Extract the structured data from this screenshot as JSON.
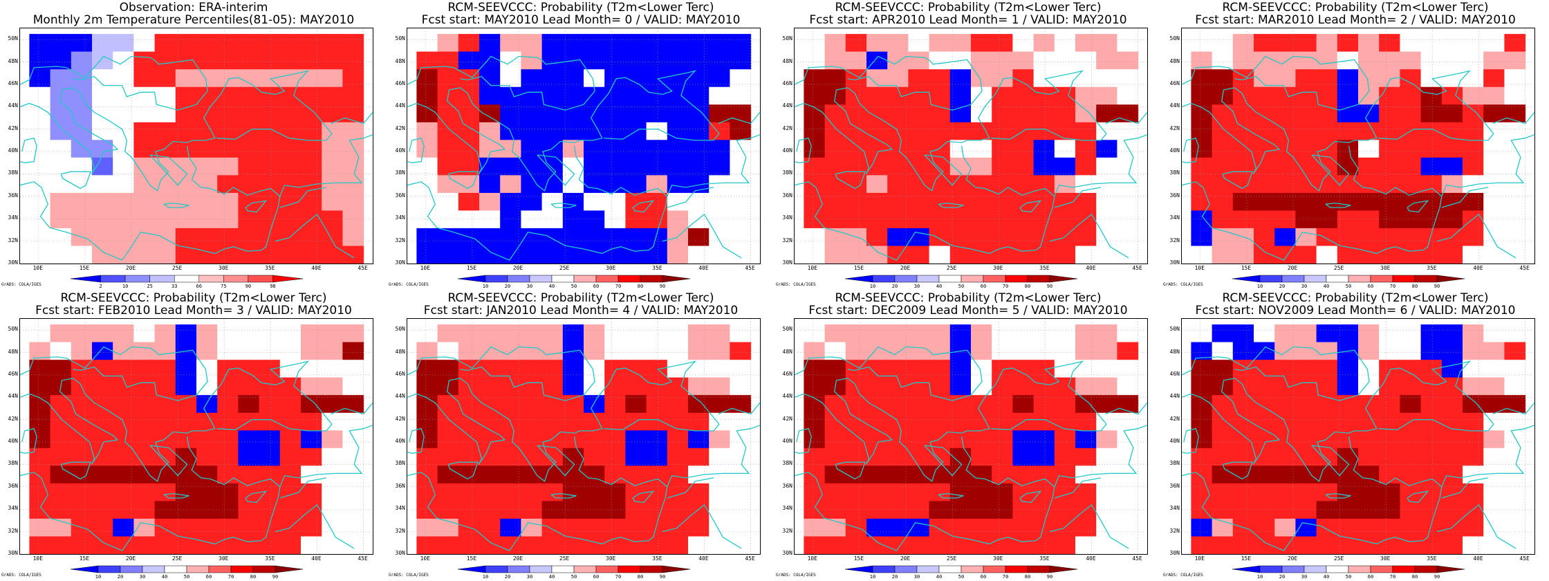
{
  "panels": [
    {
      "title1": "Observation: ERA-interim",
      "title2": "Monthly 2m Temperature Percentiles(81-05): MAY2010",
      "colorbar_ticks": [
        "2",
        "10",
        "25",
        "33",
        "66",
        "75",
        "90",
        "98"
      ],
      "colorbar_colors": [
        "#0000ff",
        "#5050ff",
        "#8f8fff",
        "#c0c0ff",
        "#ffffff",
        "#ffc0c0",
        "#ff8f8f",
        "#ff5050",
        "#ff0000"
      ],
      "grid": [
        "BBBCCWRRRRRRRRRR",
        "BBLCWRRRRRRRRRRR",
        "BLLWWRRPPPPPPPPR",
        "WLLWWWWRRRRRRRRR",
        "WLLWWWWRRRRRRRRR",
        "WLLWWRRRRRRRRRPP",
        "WWLLWRRRRRRRRRPP",
        "WWWMWPPPPPRRRRPP",
        "WWWWWPPPPRRRRRPP",
        "WPPPPPPPPPRRRRPP",
        "WPPPPPPPPPRRRRRP",
        "WWPPPPPRRRRRRRRP",
        "WWWPPPPRRRRRRRRR"
      ]
    },
    {
      "title1": "RCM-SEEVCCC: Probability (T2m<Lower Terc)",
      "title2": "Fcst start: MAY2010   Lead Month= 0 / VALID: MAY2010",
      "colorbar_ticks": [
        "10",
        "20",
        "30",
        "40",
        "50",
        "60",
        "70",
        "80",
        "90"
      ],
      "colorbar_colors": [
        "#0000ff",
        "#4040ff",
        "#8080ff",
        "#c8c8ff",
        "#ffffff",
        "#ffb0b0",
        "#ff6060",
        "#ff0000",
        "#c00000",
        "#8b0000"
      ],
      "grid": [
        "WPRBPPBBBBBBBBBB",
        "RRBBWPBBBBBBBBBB",
        "DRRBWBBBWBBBBBBW",
        "DRRBBBBBBBBBBBWW",
        "DRRDBBBBBBBBBBDD",
        "PRRPBBBBBBBWBBRD",
        "PRRPPBBPBBBBBBBW",
        "WRRBBBBWBBBBBBBW",
        "WPPBPBBWBBBPBBWW",
        "WWRPBBWBWWRRWWWW",
        "WWWWBWWBBWRRPWWW",
        "BBBBBBBBBBBBPDWW",
        "BBBBBBBBBBBBPWWW"
      ]
    },
    {
      "title1": "RCM-SEEVCCC: Probability (T2m<Lower Terc)",
      "title2": "Fcst start: APR2010   Lead Month= 1 / VALID: MAY2010",
      "colorbar_ticks": [
        "10",
        "20",
        "30",
        "40",
        "50",
        "60",
        "70",
        "80",
        "90"
      ],
      "colorbar_colors": [
        "#0000ff",
        "#4040ff",
        "#8080ff",
        "#c8c8ff",
        "#ffffff",
        "#ffb0b0",
        "#ff6060",
        "#ff0000",
        "#c00000",
        "#8b0000"
      ],
      "grid": [
        "WPRPPWPPRRWPWPPW",
        "WPPBPPWWPPPWWWPP",
        "DDRPPRRBPPRWWWWW",
        "DDRRRRRBWRRRRPPW",
        "DRRRRRRBWRRRRPDD",
        "DRRRRRRRRRRRRRWW",
        "DRRRRRRWWRRBWRBW",
        "RRRRRRRPPRRBBRWW",
        "RRRPRRRRRRRRPWWW",
        "RRRRRRRRRRRRRRWW",
        "RRRRRRRRRRRRRRWW",
        "WPPRBBRRRRRRRRWW",
        "WPPPRRWRRRRRRWWW"
      ]
    },
    {
      "title1": "RCM-SEEVCCC: Probability (T2m<Lower Terc)",
      "title2": "Fcst start: MAR2010   Lead Month= 2 / VALID: MAY2010",
      "colorbar_ticks": [
        "10",
        "20",
        "30",
        "40",
        "50",
        "60",
        "70",
        "80",
        "90"
      ],
      "colorbar_colors": [
        "#0000ff",
        "#4040ff",
        "#8080ff",
        "#c8c8ff",
        "#ffffff",
        "#ffb0b0",
        "#ff6060",
        "#ff0000",
        "#c00000",
        "#8b0000"
      ],
      "grid": [
        "WWPRRRPRPRWWWWWR",
        "PWPPPPPWPPPWWWPP",
        "DDRPPRRBPPRWWWRW",
        "DDRRRRRBPRRDRPPW",
        "DRRRRRRBBRRDDRDD",
        "DRRRRRRRRRRRRRWW",
        "DRRRRRRDWRRRRRWW",
        "RRRRRRRDRRRBBRWW",
        "RRRRRRRRRRRRPWWW",
        "RRDDDDDDDDDDDDWW",
        "BRRRRDDRRDDDDRWW",
        "BPPRBPRRRRRRRRWW",
        "WPPRRRWRRRRRRWWW"
      ]
    },
    {
      "title1": "RCM-SEEVCCC: Probability (T2m<Lower Terc)",
      "title2": "Fcst start: FEB2010   Lead Month= 3 / VALID: MAY2010",
      "colorbar_ticks": [
        "10",
        "20",
        "30",
        "40",
        "50",
        "60",
        "70",
        "80",
        "90"
      ],
      "colorbar_colors": [
        "#0000ff",
        "#4040ff",
        "#8080ff",
        "#c8c8ff",
        "#ffffff",
        "#ffb0b0",
        "#ff6060",
        "#ff0000",
        "#c00000",
        "#8b0000"
      ],
      "grid": [
        "WPPPPWPBPWWWWPPP",
        "PWPBPPPBPWWWWPPD",
        "DDRRRRRBWRRRWWWW",
        "DDRRRRRBWRRRRPPW",
        "DRRRRRRRBRDRRDDD",
        "DRRRRRRRRRRRRRWW",
        "DRRRRRRRRRBBRBPW",
        "RRRRRRRDRRBBRRWW",
        "RDDDDDDDDRRRRWWW",
        "RRRRRRRDDDRRRRWW",
        "RRRRRRDDDDRRRRWW",
        "PPRRBPRRRRRRRRWW",
        "RRRRRRRRRRRRRWWW"
      ]
    },
    {
      "title1": "RCM-SEEVCCC: Probability (T2m<Lower Terc)",
      "title2": "Fcst start: JAN2010   Lead Month= 4 / VALID: MAY2010",
      "colorbar_ticks": [
        "10",
        "20",
        "30",
        "40",
        "50",
        "60",
        "70",
        "80",
        "90"
      ],
      "colorbar_colors": [
        "#0000ff",
        "#4040ff",
        "#8080ff",
        "#c8c8ff",
        "#ffffff",
        "#ffb0b0",
        "#ff6060",
        "#ff0000",
        "#c00000",
        "#8b0000"
      ],
      "grid": [
        "WPPPPPPBPWWWWPPW",
        "PWPPPPPBPWWWWPPR",
        "DDRRRRRBWRRRWWWW",
        "DDRRRRRBWRRRRPPW",
        "DRRRRRRRBRDRRDDD",
        "DRRRRRRRRRRRRRWW",
        "DRRRRRRRRRBBRBPW",
        "RRRRRRRDRRBBRRWW",
        "RDDDDDDDDRRRRWWW",
        "RRRRRRRDDDRRRRWW",
        "RRRRRRDDDDRRRRWW",
        "PPRRBPRRRRRRRRWW",
        "RRRRRRRRRRRRRWWW"
      ]
    },
    {
      "title1": "RCM-SEEVCCC: Probability (T2m<Lower Terc)",
      "title2": "Fcst start: DEC2009   Lead Month= 5 / VALID: MAY2010",
      "colorbar_ticks": [
        "10",
        "20",
        "30",
        "40",
        "50",
        "60",
        "70",
        "80",
        "90"
      ],
      "colorbar_colors": [
        "#0000ff",
        "#4040ff",
        "#8080ff",
        "#c8c8ff",
        "#ffffff",
        "#ffb0b0",
        "#ff6060",
        "#ff0000",
        "#c00000",
        "#8b0000"
      ],
      "grid": [
        "WPPPPPPBPWWWWPPW",
        "PWPPPPPBPWWWWPPR",
        "DDRRRRRBWRRRWWWW",
        "DDRRRRRBWRRRRPPW",
        "DRRRRRRRRRDRRDDD",
        "DRRRRRRRRRRRRRWW",
        "DRRRRRRRRRBBRBPW",
        "RRRRRRRDRRBBRRWW",
        "RDDDDDDDDRRRRWWW",
        "RRRRRRRDDDRRRRWW",
        "RRRRRRDDDDRRRRWW",
        "PPRBBBRRRRRRRRWW",
        "RRRRRRRRRRRRRWWW"
      ]
    },
    {
      "title1": "RCM-SEEVCCC: Probability (T2m<Lower Terc)",
      "title2": "Fcst start: NOV2009   Lead Month= 6 / VALID: MAY2010",
      "colorbar_ticks": [
        "10",
        "20",
        "30",
        "40",
        "50",
        "60",
        "70",
        "80",
        "90"
      ],
      "colorbar_colors": [
        "#0000ff",
        "#4040ff",
        "#8080ff",
        "#c8c8ff",
        "#ffffff",
        "#ffb0b0",
        "#ff6060",
        "#ff0000",
        "#c00000",
        "#8b0000"
      ],
      "grid": [
        "WBBWPPBBPWWBBPWW",
        "BWBBPPPBPWWBBPPR",
        "DDRRRRRBWRRRBWWW",
        "DDRRRRRBWRRRRPPW",
        "DRRRRRRRRRDRRDDD",
        "DRRRRRRRRRRRRRWW",
        "DRRRRRRRRRRRRRPW",
        "RRRRRRRDRRRRRRWW",
        "RDDDDDDDDRRRRWWW",
        "RRRRRRRDDDRRRRWW",
        "RRRRRRDDDDRRRRWW",
        "BPRRPBRRRRRRRRWW",
        "RRRRRRRRRRRRRWWW"
      ]
    }
  ],
  "cell_colors": {
    "B": "#0000ff",
    "L": "#8f8fff",
    "C": "#c0c0ff",
    "W": "#ffffff",
    "P": "#ffaaaa",
    "R": "#ff2020",
    "M": "#6060ff",
    "D": "#a00000"
  },
  "coast_color": "#20c8c8",
  "lat_labels": [
    "50N",
    "48N",
    "46N",
    "44N",
    "42N",
    "40N",
    "38N",
    "36N",
    "34N",
    "32N",
    "30N"
  ],
  "lon_labels": [
    "10E",
    "15E",
    "20E",
    "25E",
    "30E",
    "35E",
    "40E",
    "45E"
  ],
  "grads_label": "GrADS: COLA/IGES"
}
